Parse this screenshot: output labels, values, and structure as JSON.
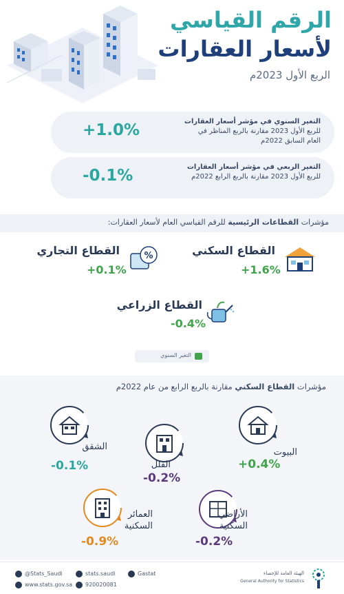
{
  "header": {
    "title_line1": "الرقم القياسي",
    "title_line2": "لأسعار العقارات",
    "subtitle": "الربع الأول 2023م"
  },
  "stats": {
    "annual": {
      "desc_bold": "التغير السنوي في مؤشر أسعار العقارات",
      "desc_rest": "للربع الأول 2023 مقارنة بالربع المناظر في العام السابق 2022م",
      "value": "+1.0%"
    },
    "quarterly": {
      "desc_bold": "التغير الربعي في مؤشر أسعار العقارات",
      "desc_rest": "للربع الأول 2023 مقارنة بالربع الرابع 2022م",
      "value": "-0.1%"
    }
  },
  "sectors": {
    "header_prefix": "مؤشرات ",
    "header_bold": "القطاعات الرئيسية",
    "header_suffix": " للرقم القياسي العام لأسعار العقارات:",
    "residential": {
      "name": "القطاع السكني",
      "value": "+1.6%"
    },
    "commercial": {
      "name": "القطاع التجاري",
      "value": "+0.1%"
    },
    "agricultural": {
      "name": "القطاع الزراعي",
      "value": "-0.4%"
    },
    "legend": "التغير السنوي"
  },
  "residential": {
    "title_prefix": "مؤشرات ",
    "title_bold": "القطاع السكني",
    "title_suffix": " مقارنة بالربع الرابع من عام 2022م",
    "houses": {
      "label": "البيوت",
      "value": "+0.4%"
    },
    "villas": {
      "label": "الفلل",
      "value": "-0.2%"
    },
    "apartments": {
      "label": "الشقق",
      "value": "-0.1%"
    },
    "land_line1": "الأراضي",
    "land_line2": "السكنية",
    "land_value": "-0.2%",
    "buildings_line1": "العمائر",
    "buildings_line2": "السكنية",
    "buildings_value": "-0.9%"
  },
  "footer": {
    "twitter": "@Stats_Saudi",
    "instagram": "stats.saudi",
    "snapchat": "Gastat",
    "website": "www.stats.gov.sa",
    "phone": "920020081",
    "org_line1": "الهيئة العامة للإحصاء",
    "org_line2": "General Authority for Statistics"
  },
  "colors": {
    "teal": "#2aa7a0",
    "navy": "#1e3f7a",
    "green": "#3fa44a",
    "purple": "#5a3a7a",
    "orange": "#e28a1e"
  }
}
